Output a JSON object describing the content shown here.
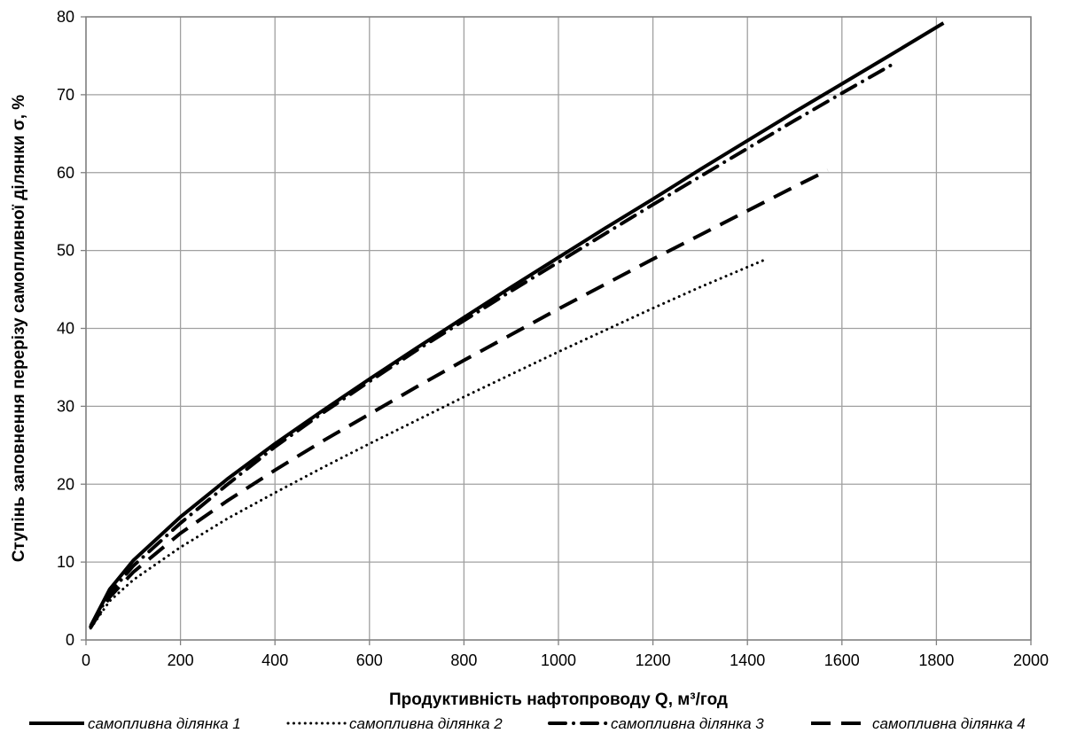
{
  "chart_data": {
    "type": "line",
    "xlabel": "Продуктивність  нафтопроводу Q, м³/год",
    "ylabel": "Ступінь  заповнення перерізу самопливної ділянки σ, %",
    "xlim": [
      0,
      2000
    ],
    "ylim": [
      0,
      80
    ],
    "xticks": [
      0,
      200,
      400,
      600,
      800,
      1000,
      1200,
      1400,
      1600,
      1800,
      2000
    ],
    "yticks": [
      0,
      10,
      20,
      30,
      40,
      50,
      60,
      70,
      80
    ],
    "grid": true,
    "legend_position": "bottom",
    "colors": {
      "line": "#000000",
      "grid": "#a0a0a0",
      "frame": "#808080"
    },
    "series": [
      {
        "name": "самопливна ділянка 1",
        "style": "solid",
        "x": [
          10,
          50,
          100,
          200,
          300,
          400,
          500,
          600,
          700,
          800,
          900,
          1000,
          1100,
          1200,
          1300,
          1400,
          1500,
          1600,
          1700,
          1815
        ],
        "y": [
          1.8,
          6.5,
          10.2,
          15.8,
          20.7,
          25.2,
          29.4,
          33.5,
          37.5,
          41.4,
          45.3,
          49.1,
          52.9,
          56.6,
          60.4,
          64.1,
          67.8,
          71.4,
          75.0,
          79.2
        ]
      },
      {
        "name": "самопливна ділянка 2",
        "style": "dotted",
        "x": [
          10,
          50,
          100,
          200,
          300,
          400,
          500,
          600,
          700,
          800,
          900,
          1000,
          1100,
          1200,
          1300,
          1440
        ],
        "y": [
          1.5,
          5.0,
          7.7,
          11.9,
          15.6,
          18.9,
          22.1,
          25.2,
          28.2,
          31.2,
          34.1,
          37.0,
          39.8,
          42.6,
          45.3,
          48.9
        ]
      },
      {
        "name": "самопливна ділянка 3",
        "style": "dash-dot",
        "x": [
          10,
          50,
          100,
          200,
          300,
          400,
          500,
          600,
          700,
          800,
          900,
          1000,
          1100,
          1200,
          1300,
          1400,
          1500,
          1600,
          1710
        ],
        "y": [
          1.7,
          6.0,
          9.5,
          15.0,
          20.0,
          24.8,
          29.1,
          33.2,
          37.2,
          41.0,
          44.8,
          48.5,
          52.2,
          55.9,
          59.5,
          63.1,
          66.7,
          70.2,
          74.0
        ]
      },
      {
        "name": "самопливна ділянка 4",
        "style": "dashed",
        "x": [
          10,
          50,
          100,
          200,
          300,
          400,
          500,
          600,
          700,
          800,
          900,
          1000,
          1100,
          1200,
          1300,
          1400,
          1500,
          1570
        ],
        "y": [
          1.6,
          5.5,
          8.7,
          13.7,
          17.9,
          21.8,
          25.5,
          29.0,
          32.5,
          35.9,
          39.2,
          42.5,
          45.7,
          48.9,
          52.0,
          55.1,
          58.2,
          60.3
        ]
      }
    ]
  }
}
